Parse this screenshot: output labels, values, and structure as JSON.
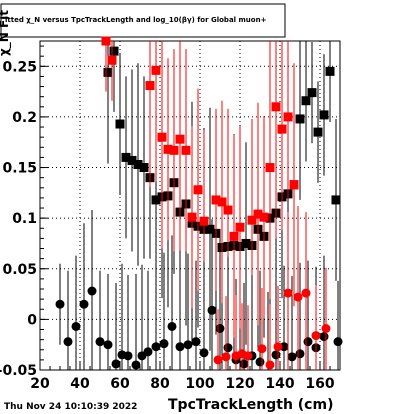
{
  "chart_data": {
    "type": "scatter",
    "title": "itted χ_N versus TpcTrackLength and log_10(βγ) for Global muon+",
    "xlabel": "TpcTrackLength (cm)",
    "ylabel": "χ_N Fit",
    "xlim": [
      20,
      170
    ],
    "ylim": [
      -0.05,
      0.275
    ],
    "xticks": [
      20,
      40,
      60,
      80,
      100,
      120,
      140,
      160
    ],
    "yticks": [
      -0.05,
      0,
      0.05,
      0.1,
      0.15,
      0.2,
      0.25
    ],
    "xtick_labels": [
      "20",
      "40",
      "60",
      "80",
      "100",
      "120",
      "140",
      "160"
    ],
    "ytick_labels": [
      "-0.05",
      "0",
      "0.05",
      "0.1",
      "0.15",
      "0.2",
      "0.25"
    ],
    "grid": true,
    "footer": "Thu Nov 24 10:10:39 2022",
    "colors": {
      "black": "#000000",
      "red": "#ff0000"
    },
    "series": [
      {
        "marker": "square",
        "color": "#000000",
        "x": [
          54,
          57,
          60,
          63,
          66,
          69,
          72,
          75,
          78,
          81,
          84,
          87,
          90,
          93,
          96,
          99,
          102,
          105,
          108,
          111,
          114,
          117,
          120,
          123,
          126,
          129,
          132,
          135,
          138,
          141,
          144,
          147,
          150,
          153,
          156,
          159,
          162,
          165,
          168
        ],
        "y": [
          0.244,
          0.265,
          0.193,
          0.16,
          0.157,
          0.153,
          0.15,
          0.14,
          0.118,
          0.121,
          0.122,
          0.135,
          0.106,
          0.114,
          0.095,
          0.092,
          0.089,
          0.089,
          0.085,
          0.071,
          0.072,
          0.073,
          0.072,
          0.075,
          0.073,
          0.089,
          0.082,
          0.1,
          0.105,
          0.121,
          0.124,
          0.133,
          0.198,
          0.216,
          0.224,
          0.185,
          0.202,
          0.245,
          0.118
        ],
        "err": [
          0.09,
          0.06,
          0.07,
          0.08,
          0.09,
          0.1,
          0.09,
          0.08,
          0.1,
          0.1,
          0.11,
          0.09,
          0.1,
          0.12,
          0.12,
          0.1,
          0.1,
          0.12,
          0.1,
          0.12,
          0.11,
          0.11,
          0.12,
          0.1,
          0.12,
          0.12,
          0.1,
          0.12,
          0.12,
          0.1,
          0.09,
          0.1,
          0.08,
          0.06,
          0.05,
          0.05,
          0.06,
          0.05,
          0.08
        ]
      },
      {
        "marker": "square",
        "color": "#ff0000",
        "x": [
          53,
          56,
          75,
          78,
          81,
          84,
          87,
          90,
          93,
          96,
          99,
          102,
          108,
          111,
          114,
          117,
          120,
          126,
          129,
          132,
          135,
          138,
          141,
          144,
          147
        ],
        "y": [
          0.275,
          0.256,
          0.231,
          0.246,
          0.18,
          0.168,
          0.167,
          0.178,
          0.167,
          0.101,
          0.128,
          0.097,
          0.118,
          0.116,
          0.108,
          0.082,
          0.091,
          0.098,
          0.104,
          0.101,
          0.15,
          0.21,
          0.188,
          0.2,
          0.133
        ],
        "err": [
          0.05,
          0.04,
          0.1,
          0.11,
          0.11,
          0.09,
          0.1,
          0.11,
          0.1,
          0.09,
          0.1,
          0.09,
          0.09,
          0.1,
          0.1,
          0.1,
          0.1,
          0.1,
          0.11,
          0.1,
          0.13,
          0.13,
          0.1,
          0.08,
          0.12
        ]
      },
      {
        "marker": "circle",
        "color": "#000000",
        "x": [
          30,
          34,
          38,
          42,
          46,
          50,
          54,
          58,
          61,
          64,
          68,
          71,
          74,
          78,
          82,
          86,
          90,
          94,
          98,
          102,
          106,
          110,
          114,
          118,
          122,
          126,
          130,
          134,
          138,
          142,
          146,
          150,
          154,
          158,
          162,
          169
        ],
        "y": [
          0.015,
          -0.022,
          -0.007,
          0.015,
          0.028,
          -0.022,
          -0.025,
          -0.044,
          -0.035,
          -0.036,
          -0.045,
          -0.036,
          -0.032,
          -0.027,
          -0.024,
          -0.007,
          -0.027,
          -0.025,
          -0.022,
          -0.033,
          0.009,
          -0.009,
          -0.028,
          -0.04,
          -0.044,
          -0.036,
          -0.042,
          -0.053,
          -0.035,
          -0.027,
          -0.037,
          -0.034,
          -0.022,
          -0.028,
          -0.017,
          -0.022
        ],
        "err": [
          0.04,
          0.07,
          0.07,
          0.08,
          0.08,
          0.07,
          0.07,
          0.08,
          0.09,
          0.08,
          0.09,
          0.09,
          0.08,
          0.08,
          0.09,
          0.09,
          0.08,
          0.09,
          0.08,
          0.09,
          0.09,
          0.09,
          0.09,
          0.08,
          0.08,
          0.08,
          0.09,
          0.08,
          0.08,
          0.08,
          0.08,
          0.09,
          0.08,
          0.08,
          0.08,
          0.06
        ]
      },
      {
        "marker": "circle",
        "color": "#ff0000",
        "x": [
          109,
          113,
          118,
          121,
          124,
          131,
          135,
          139,
          144,
          149,
          153,
          158,
          163
        ],
        "y": [
          -0.04,
          -0.037,
          -0.036,
          -0.034,
          -0.036,
          -0.029,
          -0.045,
          -0.027,
          0.026,
          0.022,
          0.026,
          -0.016,
          -0.009
        ],
        "err": [
          0.05,
          0.06,
          0.06,
          0.05,
          0.05,
          0.06,
          0.06,
          0.06,
          0.08,
          0.09,
          0.08,
          0.05,
          0.06
        ]
      }
    ]
  }
}
